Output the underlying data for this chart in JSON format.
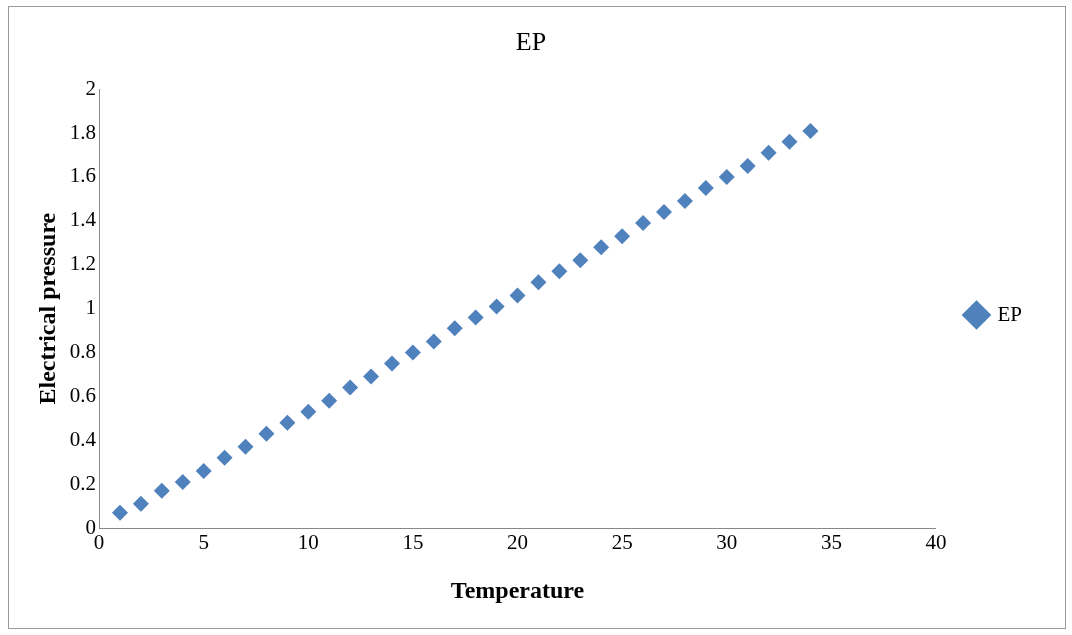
{
  "chart_data": {
    "type": "scatter",
    "title": "EP",
    "xlabel": "Temperature",
    "ylabel": "Electrical pressure",
    "x": [
      1,
      2,
      3,
      4,
      5,
      6,
      7,
      8,
      9,
      10,
      11,
      12,
      13,
      14,
      15,
      16,
      17,
      18,
      19,
      20,
      21,
      22,
      23,
      24,
      25,
      26,
      27,
      28,
      29,
      30,
      31,
      32,
      33,
      34
    ],
    "series": [
      {
        "name": "EP",
        "color": "#4f81bd",
        "values": [
          0.07,
          0.11,
          0.17,
          0.21,
          0.26,
          0.32,
          0.37,
          0.43,
          0.48,
          0.53,
          0.58,
          0.64,
          0.69,
          0.75,
          0.8,
          0.85,
          0.91,
          0.96,
          1.01,
          1.06,
          1.12,
          1.17,
          1.22,
          1.28,
          1.33,
          1.39,
          1.44,
          1.49,
          1.55,
          1.6,
          1.65,
          1.71,
          1.76,
          1.81
        ]
      }
    ],
    "xlim": [
      0,
      40
    ],
    "xticks": [
      0,
      5,
      10,
      15,
      20,
      25,
      30,
      35,
      40
    ],
    "ylim": [
      0,
      2
    ],
    "yticks": [
      0,
      0.2,
      0.4,
      0.6,
      0.8,
      1,
      1.2,
      1.4,
      1.6,
      1.8,
      2
    ],
    "grid": false,
    "legend": "right",
    "marker": "diamond"
  }
}
